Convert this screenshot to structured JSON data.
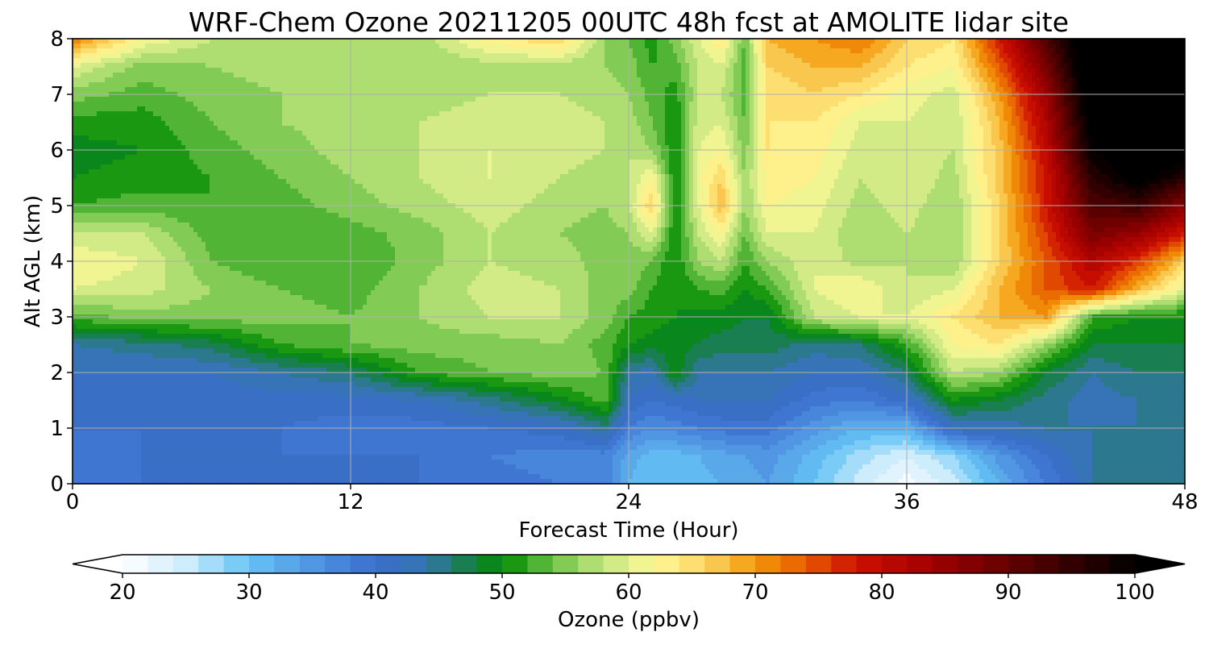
{
  "chart_data": {
    "type": "heatmap",
    "title": "WRF-Chem Ozone  20211205 00UTC 48h fcst at AMOLITE lidar site",
    "xlabel": "Forecast Time (Hour)",
    "ylabel": "Alt AGL (km)",
    "xlim": [
      0,
      48
    ],
    "ylim": [
      0,
      8
    ],
    "xticks": [
      "0",
      "12",
      "24",
      "36",
      "48"
    ],
    "yticks": [
      "0",
      "1",
      "2",
      "3",
      "4",
      "5",
      "6",
      "7",
      "8"
    ],
    "grid": true,
    "x": [
      0,
      3,
      6,
      9,
      12,
      15,
      18,
      21,
      23,
      24,
      25,
      26,
      27,
      28,
      29,
      30,
      32,
      34,
      36,
      38,
      40,
      42,
      44,
      46,
      48
    ],
    "y": [
      0,
      0.5,
      1,
      1.5,
      2,
      2.5,
      3,
      3.5,
      4,
      4.5,
      5,
      5.5,
      6,
      6.5,
      7,
      7.5,
      8
    ],
    "z_units": "ppbv",
    "z": [
      [
        40,
        40,
        41,
        40,
        40,
        40,
        39,
        38,
        38,
        32,
        30,
        30,
        31,
        32,
        33,
        34,
        30,
        25,
        21,
        25,
        32,
        38,
        44,
        44,
        44
      ],
      [
        39,
        40,
        41,
        40,
        40,
        40,
        38,
        37,
        37,
        33,
        31,
        31,
        32,
        33,
        34,
        35,
        31,
        27,
        24,
        28,
        35,
        40,
        44,
        44,
        44
      ],
      [
        40,
        40,
        41,
        40,
        39,
        39,
        40,
        41,
        45,
        38,
        36,
        37,
        38,
        39,
        39,
        39,
        35,
        32,
        32,
        42,
        43,
        44,
        44,
        44,
        44
      ],
      [
        41,
        41,
        41,
        41,
        41,
        42,
        45,
        49,
        53,
        42,
        40,
        41,
        42,
        42,
        42,
        42,
        39,
        38,
        41,
        50,
        48,
        45,
        43,
        44,
        45
      ],
      [
        42,
        42,
        42,
        44,
        46,
        52,
        54,
        55,
        54,
        44,
        43,
        50,
        44,
        44,
        44,
        44,
        42,
        42,
        46,
        58,
        56,
        48,
        44,
        46,
        46
      ],
      [
        44,
        45,
        47,
        52,
        54,
        55,
        55,
        56,
        53,
        50,
        49,
        49,
        48,
        47,
        47,
        47,
        45,
        46,
        52,
        62,
        64,
        56,
        48,
        48,
        48
      ],
      [
        53,
        55,
        55,
        55,
        54,
        56,
        58,
        58,
        55,
        52,
        51,
        50,
        49,
        49,
        48,
        48,
        58,
        60,
        60,
        64,
        68,
        70,
        52,
        50,
        50
      ],
      [
        60,
        59,
        56,
        54,
        53,
        56,
        59,
        58,
        55,
        55,
        52,
        50,
        52,
        53,
        50,
        52,
        60,
        62,
        58,
        60,
        68,
        74,
        78,
        68,
        60
      ],
      [
        62,
        60,
        54,
        52,
        52,
        55,
        58,
        57,
        55,
        55,
        54,
        50,
        56,
        58,
        52,
        56,
        60,
        57,
        58,
        56,
        66,
        74,
        82,
        76,
        66
      ],
      [
        58,
        58,
        53,
        52,
        53,
        55,
        58,
        56,
        55,
        56,
        60,
        50,
        58,
        62,
        54,
        60,
        60,
        56,
        58,
        56,
        66,
        76,
        88,
        85,
        78
      ],
      [
        52,
        53,
        52,
        53,
        55,
        57,
        59,
        57,
        56,
        58,
        66,
        50,
        60,
        68,
        56,
        62,
        61,
        57,
        59,
        56,
        66,
        78,
        92,
        94,
        86
      ],
      [
        50,
        51,
        52,
        54,
        56,
        58,
        60,
        58,
        57,
        58,
        62,
        50,
        61,
        66,
        56,
        63,
        62,
        58,
        60,
        57,
        67,
        78,
        96,
        102,
        96
      ],
      [
        49,
        50,
        53,
        55,
        57,
        58,
        60,
        59,
        58,
        58,
        56,
        50,
        60,
        62,
        55,
        64,
        63,
        59,
        60,
        58,
        67,
        80,
        100,
        104,
        104
      ],
      [
        51,
        51,
        54,
        56,
        57,
        58,
        59,
        59,
        58,
        57,
        54,
        50,
        59,
        60,
        54,
        64,
        64,
        60,
        60,
        58,
        68,
        82,
        102,
        104,
        104
      ],
      [
        55,
        53,
        55,
        56,
        56,
        57,
        58,
        58,
        57,
        56,
        53,
        51,
        58,
        58,
        53,
        64,
        66,
        64,
        61,
        59,
        70,
        84,
        104,
        105,
        105
      ],
      [
        60,
        55,
        56,
        57,
        56,
        56,
        57,
        57,
        56,
        55,
        52,
        53,
        58,
        60,
        53,
        66,
        68,
        68,
        64,
        62,
        74,
        88,
        106,
        106,
        106
      ],
      [
        72,
        62,
        58,
        57,
        56,
        57,
        63,
        66,
        56,
        54,
        51,
        55,
        60,
        64,
        54,
        68,
        70,
        72,
        66,
        64,
        78,
        92,
        106,
        106,
        106
      ]
    ]
  },
  "colorbar": {
    "label": "Ozone  (ppbv)",
    "ticks": [
      "20",
      "30",
      "40",
      "50",
      "60",
      "70",
      "80",
      "90",
      "100"
    ],
    "min": 20,
    "max": 100,
    "step": 2,
    "extend": "both"
  }
}
